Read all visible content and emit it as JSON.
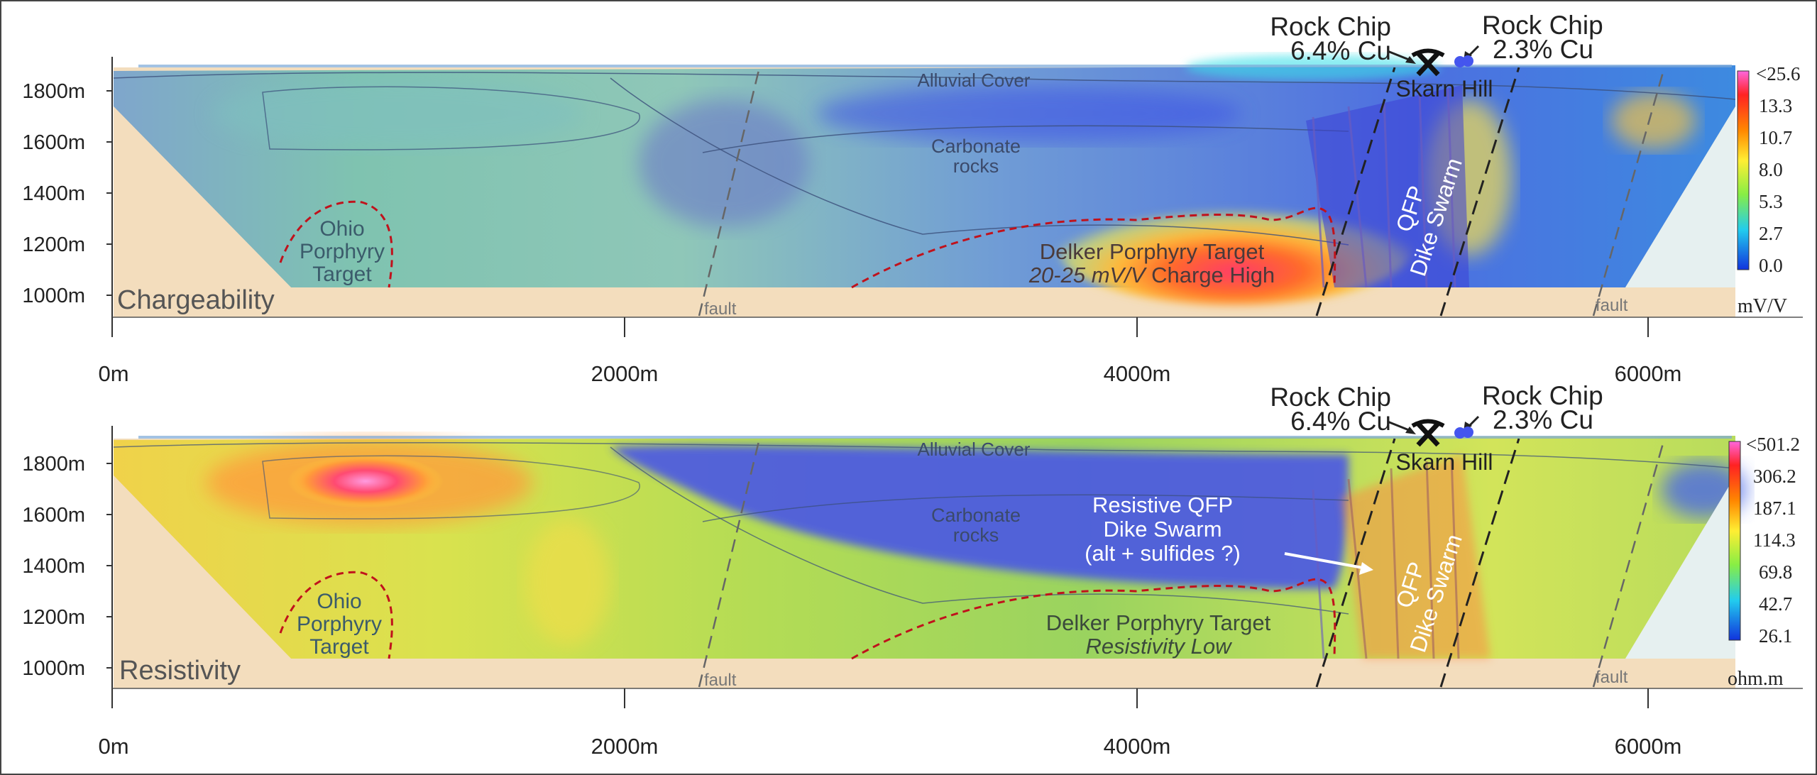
{
  "depth_ticks": [
    "1800m",
    "1600m",
    "1400m",
    "1200m",
    "1000m"
  ],
  "distance_ticks": [
    "0m",
    "2000m",
    "4000m",
    "6000m"
  ],
  "fault_label": "fault",
  "geology": {
    "alluvial_cover": "Alluvial Cover",
    "carbonate_line1": "Carbonate",
    "carbonate_line2": "rocks",
    "ohio_line1": "Ohio",
    "ohio_line2": "Porphyry",
    "ohio_line3": "Target",
    "qfp_line1": "QFP",
    "qfp_line2": "Dike Swarm",
    "skarn_hill": "Skarn Hill"
  },
  "rock_chips": {
    "left_line1": "Rock Chip",
    "left_line2": "6.4% Cu",
    "right_line1": "Rock Chip",
    "right_line2": "2.3% Cu"
  },
  "panels": [
    {
      "name": "Chargeability",
      "target_line1": "Delker Porphyry Target",
      "target_line2_em": "20-25 mV/V",
      "target_line2_rest": " Charge High",
      "scale_unit": "mV/V",
      "scale_labels": [
        "<25.6",
        "13.3",
        "10.7",
        "8.0",
        "5.3",
        "2.7",
        "0.0"
      ],
      "scale_colors": [
        "#ff66dd",
        "#ff2222",
        "#ffaa00",
        "#ffee33",
        "#88ee44",
        "#22ccee",
        "#1133dd"
      ]
    },
    {
      "name": "Resistivity",
      "target_line1": "Delker Porphyry Target",
      "target_line2_em": "Resistivity Low",
      "target_line2_rest": "",
      "annotation_line1": "Resistive QFP",
      "annotation_line2": "Dike Swarm",
      "annotation_line3": "(alt + sulfides ?)",
      "scale_unit": "ohm.m",
      "scale_labels": [
        "<501.2",
        "306.2",
        "187.1",
        "114.3",
        "69.8",
        "42.7",
        "26.1"
      ],
      "scale_colors": [
        "#ff66dd",
        "#ff2222",
        "#ffaa00",
        "#ffee33",
        "#88ee44",
        "#22ccee",
        "#1133dd"
      ]
    }
  ]
}
